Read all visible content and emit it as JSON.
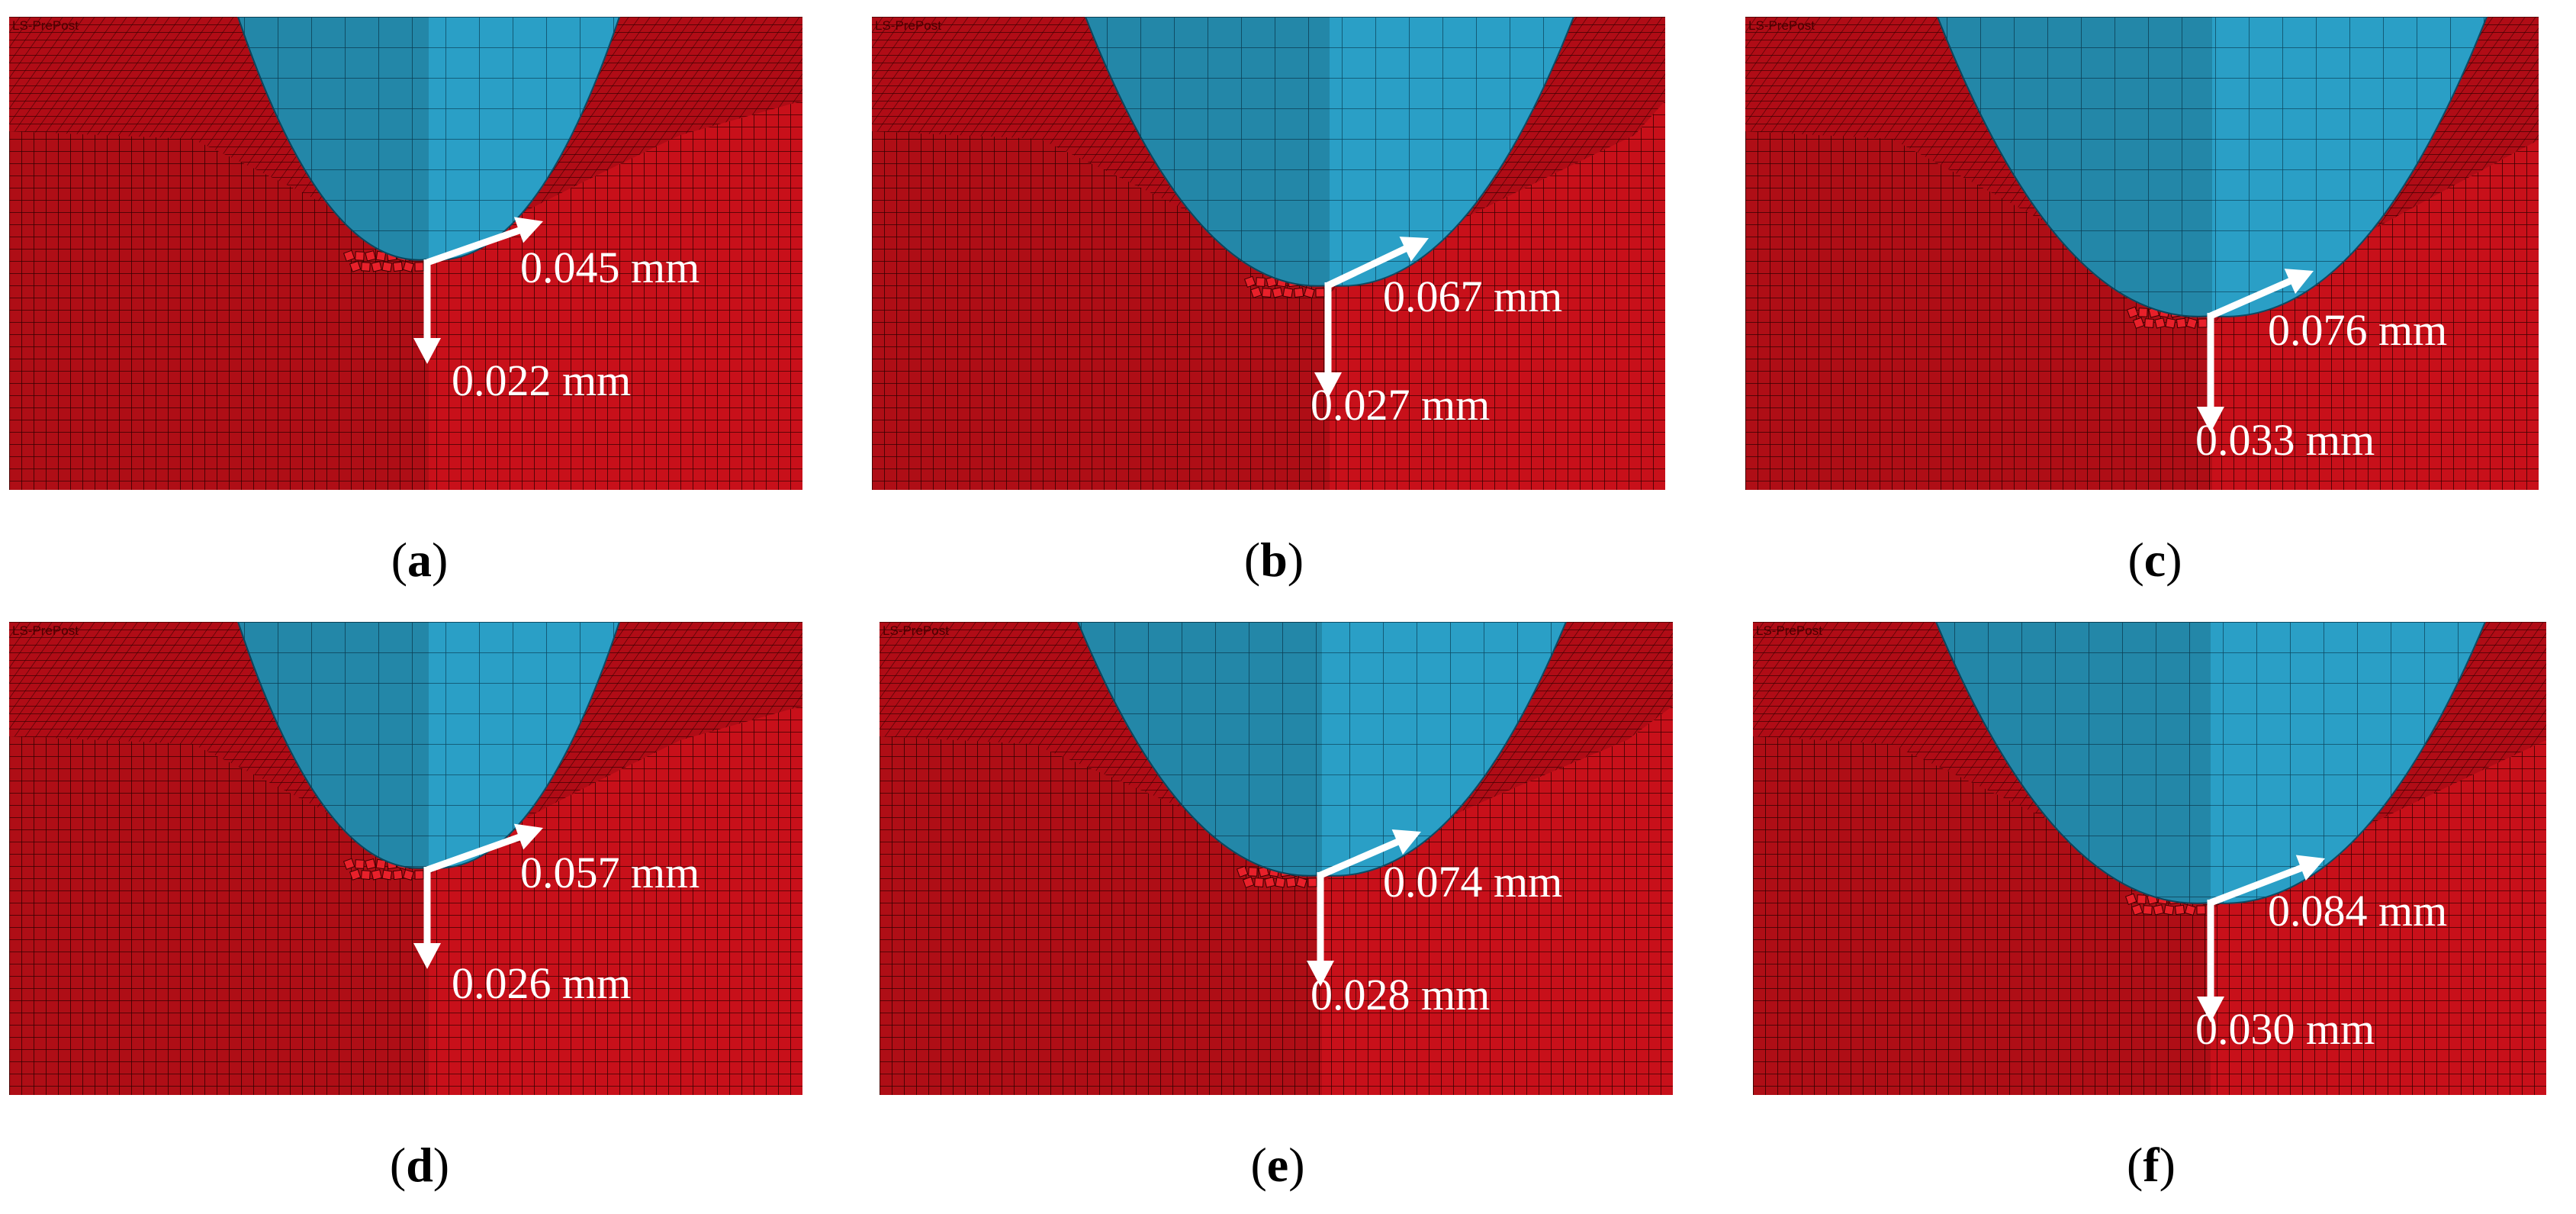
{
  "app_label": "LS-PrePost",
  "colors": {
    "workpiece": "#c8101a",
    "tool": "#2a9fc6",
    "mesh": "#3a0000",
    "arrow": "#ffffff"
  },
  "panels": [
    {
      "id": "a",
      "label": "a",
      "horizontal": "0.045 mm",
      "vertical": "0.022 mm",
      "depth": 0.022,
      "width": 0.045
    },
    {
      "id": "b",
      "label": "b",
      "horizontal": "0.067 mm",
      "vertical": "0.027 mm",
      "depth": 0.027,
      "width": 0.067
    },
    {
      "id": "c",
      "label": "c",
      "horizontal": "0.076 mm",
      "vertical": "0.033 mm",
      "depth": 0.033,
      "width": 0.076
    },
    {
      "id": "d",
      "label": "d",
      "horizontal": "0.057 mm",
      "vertical": "0.026 mm",
      "depth": 0.026,
      "width": 0.057
    },
    {
      "id": "e",
      "label": "e",
      "horizontal": "0.074 mm",
      "vertical": "0.028 mm",
      "depth": 0.028,
      "width": 0.074
    },
    {
      "id": "f",
      "label": "f",
      "horizontal": "0.084 mm",
      "vertical": "0.030 mm",
      "depth": 0.03,
      "width": 0.084
    }
  ]
}
